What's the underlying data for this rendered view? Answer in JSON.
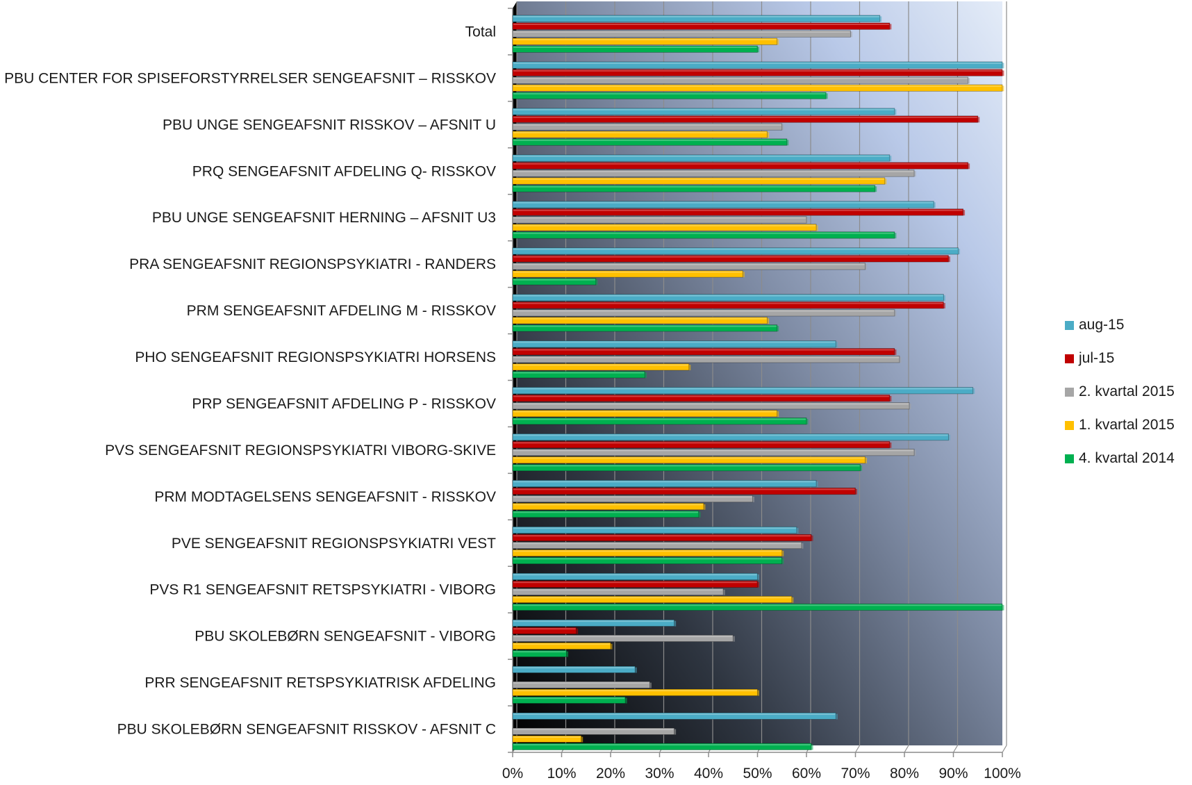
{
  "chart_data": {
    "type": "bar",
    "orientation": "horizontal",
    "categories": [
      "Total",
      "PBU CENTER FOR SPISEFORSTYRRELSER SENGEAFSNIT – RISSKOV",
      "PBU UNGE SENGEAFSNIT RISSKOV – AFSNIT U",
      "PRQ SENGEAFSNIT AFDELING Q- RISSKOV",
      "PBU UNGE SENGEAFSNIT HERNING – AFSNIT U3",
      "PRA SENGEAFSNIT REGIONSPSYKIATRI - RANDERS",
      "PRM SENGEAFSNIT AFDELING M - RISSKOV",
      "PHO SENGEAFSNIT REGIONSPSYKIATRI HORSENS",
      "PRP SENGEAFSNIT AFDELING P - RISSKOV",
      "PVS SENGEAFSNIT REGIONSPSYKIATRI VIBORG-SKIVE",
      "PRM MODTAGELSENS SENGEAFSNIT  - RISSKOV",
      "PVE SENGEAFSNIT REGIONSPSYKIATRI VEST",
      "PVS R1 SENGEAFSNIT RETSPSYKIATRI - VIBORG",
      "PBU SKOLEBØRN SENGEAFSNIT - VIBORG",
      "PRR SENGEAFSNIT RETSPSYKIATRISK AFDELING",
      "PBU SKOLEBØRN SENGEAFSNIT RISSKOV - AFSNIT C"
    ],
    "series": [
      {
        "name": "aug-15",
        "color": "#4bacc6",
        "values": [
          75,
          100,
          78,
          77,
          86,
          91,
          88,
          66,
          94,
          89,
          62,
          58,
          50,
          33,
          25,
          66
        ]
      },
      {
        "name": "jul-15",
        "color": "#c00000",
        "values": [
          77,
          100,
          95,
          93,
          92,
          89,
          88,
          78,
          77,
          77,
          70,
          61,
          50,
          13,
          0,
          0
        ]
      },
      {
        "name": "2. kvartal 2015",
        "color": "#a6a6a6",
        "values": [
          69,
          93,
          55,
          82,
          60,
          72,
          78,
          79,
          81,
          82,
          49,
          59,
          43,
          45,
          28,
          33
        ]
      },
      {
        "name": "1. kvartal 2015",
        "color": "#ffc000",
        "values": [
          54,
          100,
          52,
          76,
          62,
          47,
          52,
          36,
          54,
          72,
          39,
          55,
          57,
          20,
          50,
          14
        ]
      },
      {
        "name": "4. kvartal 2014",
        "color": "#00b050",
        "values": [
          50,
          64,
          56,
          74,
          78,
          17,
          54,
          27,
          60,
          71,
          38,
          55,
          100,
          11,
          23,
          61
        ]
      }
    ],
    "xlim": [
      0,
      100
    ],
    "ticks": [
      "0%",
      "10%",
      "20%",
      "30%",
      "40%",
      "50%",
      "60%",
      "70%",
      "80%",
      "90%",
      "100%"
    ],
    "grid": true,
    "legend_position": "right"
  }
}
